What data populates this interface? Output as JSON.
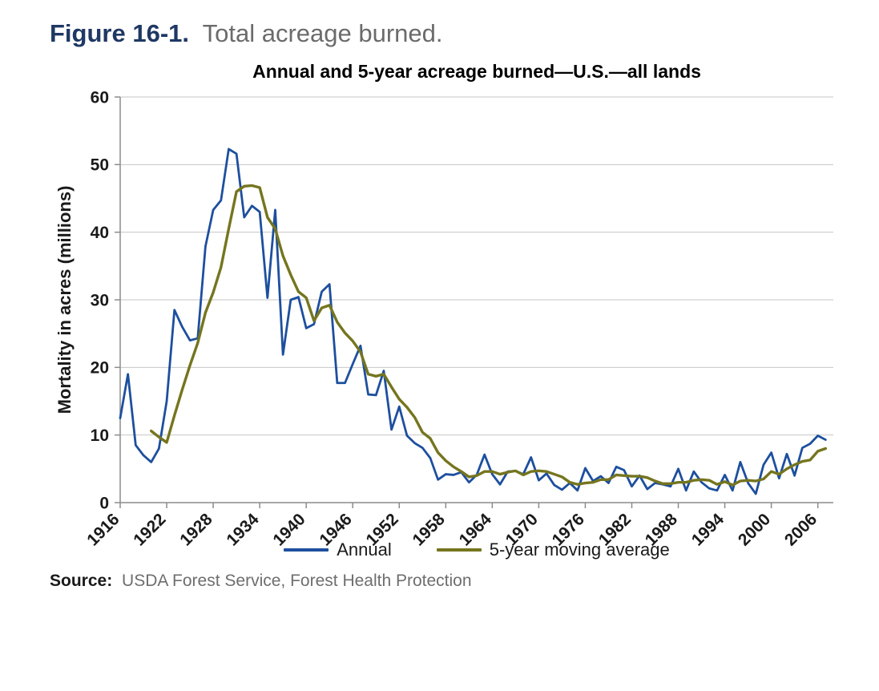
{
  "figure": {
    "label": "Figure 16-1.",
    "caption": "Total acreage burned."
  },
  "source": {
    "label": "Source:",
    "text": "USDA Forest Service, Forest Health Protection"
  },
  "chart_data": {
    "type": "line",
    "title": "Annual and 5-year acreage burned—U.S.—all lands",
    "xlabel": "",
    "ylabel": "Mortality in acres (millions)",
    "ylim": [
      0,
      60
    ],
    "y_ticks": [
      0,
      10,
      20,
      30,
      40,
      50,
      60
    ],
    "x_ticks": [
      1916,
      1922,
      1928,
      1934,
      1940,
      1946,
      1952,
      1958,
      1964,
      1970,
      1976,
      1982,
      1988,
      1994,
      2000,
      2006
    ],
    "x_range": [
      1916,
      2008
    ],
    "grid": true,
    "legend_position": "bottom",
    "axis_color": "#8c8c8c",
    "grid_color": "#c6c6c6",
    "series": [
      {
        "name": "Annual",
        "color": "#1d4f9e",
        "start_year": 1916,
        "values": [
          12.5,
          19,
          8.5,
          7,
          6,
          8,
          15,
          28.5,
          26,
          24,
          24.3,
          37.9,
          43.3,
          44.7,
          52.3,
          51.6,
          42.2,
          43.9,
          43,
          30.3,
          43.3,
          21.9,
          30,
          30.4,
          25.8,
          26.4,
          31.2,
          32.3,
          17.7,
          17.7,
          20.5,
          23.2,
          16,
          15.9,
          19.5,
          10.8,
          14.2,
          9.9,
          8.8,
          8.1,
          6.6,
          3.4,
          4.2,
          4.1,
          4.5,
          3,
          4.1,
          7.1,
          4.2,
          2.7,
          4.6,
          4.7,
          4.2,
          6.7,
          3.3,
          4.3,
          2.6,
          1.9,
          2.9,
          1.8,
          5.1,
          3.2,
          3.9,
          2.9,
          5.3,
          4.8,
          2.4,
          4,
          2,
          2.9,
          2.7,
          2.4,
          5,
          1.8,
          4.6,
          3,
          2.1,
          1.8,
          4.1,
          1.8,
          6,
          2.9,
          1.3,
          5.6,
          7.4,
          3.6,
          7.2,
          4,
          8.1,
          8.7,
          9.9,
          9.3
        ]
      },
      {
        "name": "5-year moving average",
        "color": "#75751f",
        "start_year": 1920,
        "values": [
          10.6,
          9.7,
          8.9,
          12.9,
          16.7,
          20.3,
          23.6,
          28.1,
          31.1,
          34.8,
          40.5,
          46,
          46.8,
          46.9,
          46.6,
          42.2,
          40.5,
          36.5,
          33.7,
          31.2,
          30.3,
          26.9,
          28.8,
          29.2,
          26.7,
          25.1,
          23.9,
          22.3,
          19,
          18.7,
          19,
          17.1,
          15.3,
          14.1,
          12.6,
          10.4,
          9.5,
          7.4,
          6.2,
          5.3,
          4.6,
          3.8,
          4,
          4.6,
          4.6,
          4.2,
          4.5,
          4.7,
          4.1,
          4.6,
          4.7,
          4.6,
          4.2,
          3.8,
          3,
          2.7,
          2.9,
          3,
          3.4,
          3.4,
          4.1,
          4,
          3.9,
          3.9,
          3.7,
          3.2,
          2.8,
          2.8,
          3,
          3,
          3.3,
          3.4,
          3.3,
          2.7,
          3.1,
          2.6,
          3.2,
          3.3,
          3.2,
          3.5,
          4.6,
          4.2,
          5,
          5.6,
          6.1,
          6.3,
          7.6,
          8
        ]
      }
    ]
  }
}
